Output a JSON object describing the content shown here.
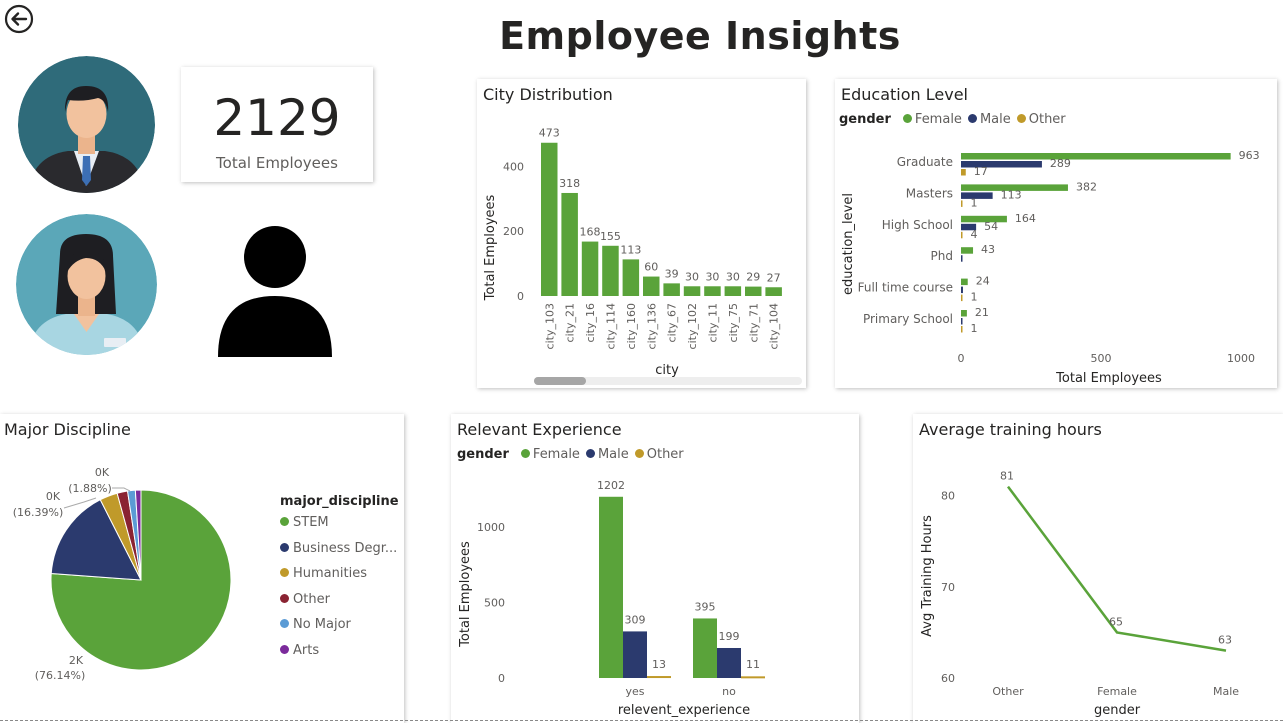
{
  "page": {
    "title": "Employee Insights",
    "back_icon": "arrow-left-circle-icon"
  },
  "colors": {
    "female": "#5AA33A",
    "male": "#2B3A6E",
    "other": "#C09A2A",
    "stem": "#5AA33A",
    "business": "#2B3A6E",
    "humanities": "#C09A2A",
    "other_major": "#8A2332",
    "no_major": "#5B9BD5",
    "arts": "#7B2A9B"
  },
  "kpi": {
    "value": "2129",
    "label": "Total Employees"
  },
  "icons": {
    "male_avatar": "male-avatar-icon",
    "female_avatar": "female-avatar-icon",
    "person": "person-silhouette-icon"
  },
  "city_chart": {
    "title": "City Distribution",
    "chart_data": {
      "type": "bar",
      "categories": [
        "city_103",
        "city_21",
        "city_16",
        "city_114",
        "city_160",
        "city_136",
        "city_67",
        "city_102",
        "city_11",
        "city_75",
        "city_71",
        "city_104"
      ],
      "values": [
        473,
        318,
        168,
        155,
        113,
        60,
        39,
        30,
        30,
        30,
        29,
        27
      ],
      "xlabel": "city",
      "ylabel": "Total Employees",
      "yticks": [
        0,
        200,
        400
      ],
      "ylim": [
        0,
        500
      ]
    }
  },
  "education_chart": {
    "title": "Education Level",
    "legend": {
      "title": "gender",
      "items": [
        "Female",
        "Male",
        "Other"
      ]
    },
    "chart_data": {
      "type": "bar",
      "orientation": "horizontal",
      "categories": [
        "Graduate",
        "Masters",
        "High School",
        "Phd",
        "Full time course",
        "Primary School"
      ],
      "series": [
        {
          "name": "Female",
          "values": [
            963,
            382,
            164,
            43,
            24,
            21
          ]
        },
        {
          "name": "Male",
          "values": [
            289,
            113,
            54,
            5,
            7,
            5
          ]
        },
        {
          "name": "Other",
          "values": [
            17,
            1,
            4,
            0,
            1,
            1
          ]
        }
      ],
      "labels": [
        [
          "963",
          "289",
          "17"
        ],
        [
          "382",
          "113",
          "1"
        ],
        [
          "164",
          "54",
          "4"
        ],
        [
          "43",
          "",
          ""
        ],
        [
          "24",
          "",
          "1"
        ],
        [
          "21",
          "",
          "1"
        ]
      ],
      "xlabel": "Total Employees",
      "ylabel": "education_level",
      "xticks": [
        0,
        500,
        1000
      ],
      "xlim": [
        0,
        1000
      ]
    }
  },
  "major_chart": {
    "title": "Major Discipline",
    "legend": {
      "title": "major_discipline",
      "items": [
        "STEM",
        "Business Degr...",
        "Humanities",
        "Other",
        "No Major",
        "Arts"
      ]
    },
    "chart_data": {
      "type": "pie",
      "categories": [
        "STEM",
        "Business Degree",
        "Humanities",
        "Other",
        "No Major",
        "Arts"
      ],
      "values": [
        76.14,
        16.39,
        3.2,
        1.88,
        1.39,
        1.0
      ],
      "labels": [
        {
          "value": "2K",
          "pct": "(76.14%)"
        },
        {
          "value": "0K",
          "pct": "(16.39%)"
        },
        {
          "value": "0K",
          "pct": "(1.88%)"
        }
      ]
    }
  },
  "experience_chart": {
    "title": "Relevant Experience",
    "legend": {
      "title": "gender",
      "items": [
        "Female",
        "Male",
        "Other"
      ]
    },
    "chart_data": {
      "type": "bar",
      "categories": [
        "yes",
        "no"
      ],
      "series": [
        {
          "name": "Female",
          "values": [
            1202,
            395
          ]
        },
        {
          "name": "Male",
          "values": [
            309,
            199
          ]
        },
        {
          "name": "Other",
          "values": [
            13,
            11
          ]
        }
      ],
      "xlabel": "relevent_experience",
      "ylabel": "Total Employees",
      "yticks": [
        0,
        500,
        1000
      ],
      "ylim": [
        0,
        1300
      ]
    }
  },
  "training_chart": {
    "title": "Average training hours",
    "chart_data": {
      "type": "line",
      "categories": [
        "Other",
        "Female",
        "Male"
      ],
      "values": [
        81,
        65,
        63
      ],
      "xlabel": "gender",
      "ylabel": "Avg Training Hours",
      "yticks": [
        60,
        70,
        80
      ],
      "ylim": [
        60,
        82.6
      ]
    }
  }
}
